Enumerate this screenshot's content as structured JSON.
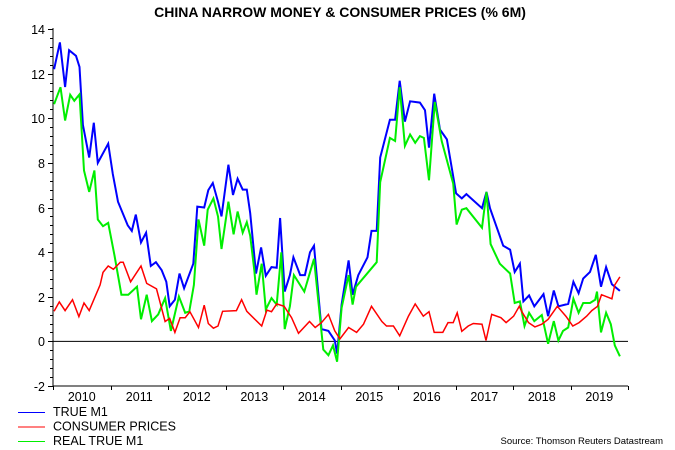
{
  "chart_data": {
    "type": "line",
    "title": "CHINA NARROW MONEY & CONSUMER PRICES (% 6M)",
    "xlabel": "",
    "ylabel": "",
    "xlim": [
      2010,
      2020
    ],
    "ylim": [
      -2,
      14
    ],
    "y_ticks": [
      "-2",
      "0",
      "2",
      "4",
      "6",
      "8",
      "10",
      "12",
      "14"
    ],
    "x_tick_labels": [
      "2010",
      "2011",
      "2012",
      "2013",
      "2014",
      "2015",
      "2016",
      "2017",
      "2018",
      "2019"
    ],
    "grid": false,
    "zero_line": true,
    "legend_placement": "bottom-left",
    "source": "Source: Thomson Reuters Datastream",
    "series": [
      {
        "name": "TRUE M1",
        "color": "#0000ff",
        "points": [
          [
            2010.02,
            12.2
          ],
          [
            2010.12,
            13.4
          ],
          [
            2010.21,
            11.4
          ],
          [
            2010.28,
            13.05
          ],
          [
            2010.4,
            12.8
          ],
          [
            2010.46,
            12.3
          ],
          [
            2010.52,
            9.7
          ],
          [
            2010.63,
            8.24
          ],
          [
            2010.71,
            9.8
          ],
          [
            2010.78,
            8.0
          ],
          [
            2010.96,
            8.86
          ],
          [
            2011.04,
            7.5
          ],
          [
            2011.13,
            6.26
          ],
          [
            2011.3,
            5.2
          ],
          [
            2011.37,
            4.95
          ],
          [
            2011.44,
            5.68
          ],
          [
            2011.53,
            4.43
          ],
          [
            2011.62,
            4.87
          ],
          [
            2011.7,
            3.38
          ],
          [
            2011.79,
            3.55
          ],
          [
            2011.89,
            3.19
          ],
          [
            2011.97,
            2.67
          ],
          [
            2012.03,
            1.57
          ],
          [
            2012.12,
            1.87
          ],
          [
            2012.2,
            3.04
          ],
          [
            2012.28,
            2.38
          ],
          [
            2012.44,
            3.48
          ],
          [
            2012.51,
            6.04
          ],
          [
            2012.63,
            6.0
          ],
          [
            2012.7,
            6.78
          ],
          [
            2012.78,
            7.1
          ],
          [
            2012.87,
            6.26
          ],
          [
            2012.93,
            5.6
          ],
          [
            2013.05,
            7.92
          ],
          [
            2013.13,
            6.56
          ],
          [
            2013.21,
            7.29
          ],
          [
            2013.3,
            6.8
          ],
          [
            2013.37,
            6.8
          ],
          [
            2013.43,
            5.75
          ],
          [
            2013.53,
            3.04
          ],
          [
            2013.62,
            4.21
          ],
          [
            2013.7,
            2.94
          ],
          [
            2013.8,
            3.33
          ],
          [
            2013.89,
            3.3
          ],
          [
            2013.95,
            5.53
          ],
          [
            2014.03,
            2.23
          ],
          [
            2014.12,
            2.97
          ],
          [
            2014.18,
            3.77
          ],
          [
            2014.3,
            2.97
          ],
          [
            2014.38,
            2.97
          ],
          [
            2014.47,
            3.99
          ],
          [
            2014.54,
            4.29
          ],
          [
            2014.67,
            0.55
          ],
          [
            2014.79,
            0.47
          ],
          [
            2014.9,
            0.04
          ],
          [
            2014.94,
            -0.55
          ],
          [
            2015.02,
            1.65
          ],
          [
            2015.14,
            3.63
          ],
          [
            2015.21,
            2.09
          ],
          [
            2015.31,
            2.97
          ],
          [
            2015.47,
            3.77
          ],
          [
            2015.54,
            4.95
          ],
          [
            2015.63,
            4.95
          ],
          [
            2015.69,
            8.24
          ],
          [
            2015.86,
            9.93
          ],
          [
            2015.95,
            9.93
          ],
          [
            2016.03,
            11.68
          ],
          [
            2016.12,
            9.85
          ],
          [
            2016.21,
            10.76
          ],
          [
            2016.38,
            10.7
          ],
          [
            2016.47,
            10.36
          ],
          [
            2016.54,
            8.68
          ],
          [
            2016.63,
            11.1
          ],
          [
            2016.73,
            9.49
          ],
          [
            2016.85,
            9.05
          ],
          [
            2017.01,
            6.63
          ],
          [
            2017.11,
            6.41
          ],
          [
            2017.19,
            6.6
          ],
          [
            2017.46,
            5.97
          ],
          [
            2017.54,
            6.7
          ],
          [
            2017.6,
            5.97
          ],
          [
            2017.72,
            5.09
          ],
          [
            2017.83,
            4.29
          ],
          [
            2017.95,
            4.11
          ],
          [
            2018.03,
            3.11
          ],
          [
            2018.12,
            3.48
          ],
          [
            2018.18,
            1.79
          ],
          [
            2018.28,
            2.06
          ],
          [
            2018.37,
            1.57
          ],
          [
            2018.53,
            2.12
          ],
          [
            2018.61,
            1.13
          ],
          [
            2018.71,
            2.28
          ],
          [
            2018.79,
            1.57
          ],
          [
            2018.96,
            1.68
          ],
          [
            2019.05,
            2.67
          ],
          [
            2019.14,
            2.16
          ],
          [
            2019.22,
            2.82
          ],
          [
            2019.34,
            3.11
          ],
          [
            2019.44,
            3.88
          ],
          [
            2019.53,
            2.45
          ],
          [
            2019.62,
            3.33
          ],
          [
            2019.72,
            2.56
          ],
          [
            2019.86,
            2.26
          ]
        ]
      },
      {
        "name": "CONSUMER PRICES",
        "color": "#ff0000",
        "points": [
          [
            2010.02,
            1.35
          ],
          [
            2010.11,
            1.77
          ],
          [
            2010.21,
            1.38
          ],
          [
            2010.34,
            1.87
          ],
          [
            2010.45,
            1.11
          ],
          [
            2010.54,
            1.72
          ],
          [
            2010.63,
            1.38
          ],
          [
            2010.82,
            2.53
          ],
          [
            2010.87,
            3.09
          ],
          [
            2010.96,
            3.38
          ],
          [
            2011.05,
            3.23
          ],
          [
            2011.17,
            3.55
          ],
          [
            2011.22,
            3.55
          ],
          [
            2011.35,
            2.67
          ],
          [
            2011.53,
            3.38
          ],
          [
            2011.63,
            2.6
          ],
          [
            2011.8,
            2.35
          ],
          [
            2011.95,
            0.89
          ],
          [
            2012.03,
            1.03
          ],
          [
            2012.12,
            0.4
          ],
          [
            2012.21,
            1.06
          ],
          [
            2012.3,
            1.06
          ],
          [
            2012.38,
            1.33
          ],
          [
            2012.53,
            0.62
          ],
          [
            2012.63,
            1.62
          ],
          [
            2012.7,
            0.8
          ],
          [
            2012.79,
            0.59
          ],
          [
            2012.87,
            0.69
          ],
          [
            2012.95,
            1.35
          ],
          [
            2013.19,
            1.38
          ],
          [
            2013.28,
            1.87
          ],
          [
            2013.37,
            1.35
          ],
          [
            2013.63,
            0.69
          ],
          [
            2013.72,
            1.4
          ],
          [
            2013.8,
            1.33
          ],
          [
            2013.89,
            1.68
          ],
          [
            2014.02,
            1.57
          ],
          [
            2014.15,
            1.06
          ],
          [
            2014.27,
            0.36
          ],
          [
            2014.46,
            0.89
          ],
          [
            2014.56,
            0.62
          ],
          [
            2014.67,
            0.84
          ],
          [
            2014.79,
            1.21
          ],
          [
            2014.9,
            0.47
          ],
          [
            2014.99,
            0.11
          ],
          [
            2015.14,
            0.62
          ],
          [
            2015.28,
            0.4
          ],
          [
            2015.4,
            0.77
          ],
          [
            2015.54,
            1.57
          ],
          [
            2015.72,
            0.89
          ],
          [
            2015.8,
            0.69
          ],
          [
            2015.92,
            0.69
          ],
          [
            2016.03,
            0.25
          ],
          [
            2016.18,
            1.13
          ],
          [
            2016.3,
            1.68
          ],
          [
            2016.44,
            1.13
          ],
          [
            2016.54,
            1.33
          ],
          [
            2016.63,
            0.4
          ],
          [
            2016.78,
            0.4
          ],
          [
            2016.87,
            0.84
          ],
          [
            2016.96,
            0.84
          ],
          [
            2017.03,
            1.28
          ],
          [
            2017.11,
            0.45
          ],
          [
            2017.22,
            0.69
          ],
          [
            2017.31,
            0.8
          ],
          [
            2017.46,
            0.77
          ],
          [
            2017.53,
            0.04
          ],
          [
            2017.63,
            1.21
          ],
          [
            2017.79,
            1.06
          ],
          [
            2017.88,
            0.84
          ],
          [
            2018.01,
            1.13
          ],
          [
            2018.11,
            1.57
          ],
          [
            2018.15,
            1.35
          ],
          [
            2018.27,
            0.84
          ],
          [
            2018.38,
            0.65
          ],
          [
            2018.5,
            0.77
          ],
          [
            2018.61,
            0.99
          ],
          [
            2018.77,
            1.57
          ],
          [
            2018.92,
            1.13
          ],
          [
            2019.04,
            0.69
          ],
          [
            2019.15,
            0.84
          ],
          [
            2019.28,
            1.13
          ],
          [
            2019.37,
            1.38
          ],
          [
            2019.47,
            1.57
          ],
          [
            2019.54,
            2.09
          ],
          [
            2019.66,
            1.97
          ],
          [
            2019.72,
            1.91
          ],
          [
            2019.77,
            2.53
          ],
          [
            2019.86,
            2.89
          ]
        ]
      },
      {
        "name": "REAL TRUE M1",
        "color": "#00ee00",
        "points": [
          [
            2010.02,
            10.63
          ],
          [
            2010.13,
            11.39
          ],
          [
            2010.21,
            9.9
          ],
          [
            2010.3,
            11.05
          ],
          [
            2010.37,
            10.78
          ],
          [
            2010.46,
            11.07
          ],
          [
            2010.54,
            7.66
          ],
          [
            2010.63,
            6.7
          ],
          [
            2010.72,
            7.66
          ],
          [
            2010.78,
            5.46
          ],
          [
            2010.87,
            5.16
          ],
          [
            2010.96,
            5.31
          ],
          [
            2011.07,
            3.85
          ],
          [
            2011.19,
            2.09
          ],
          [
            2011.31,
            2.09
          ],
          [
            2011.46,
            2.45
          ],
          [
            2011.53,
            0.99
          ],
          [
            2011.63,
            2.09
          ],
          [
            2011.72,
            0.91
          ],
          [
            2011.83,
            1.21
          ],
          [
            2011.95,
            1.94
          ],
          [
            2012.05,
            0.47
          ],
          [
            2012.19,
            2.01
          ],
          [
            2012.3,
            1.28
          ],
          [
            2012.37,
            1.35
          ],
          [
            2012.45,
            2.53
          ],
          [
            2012.53,
            5.46
          ],
          [
            2012.63,
            4.29
          ],
          [
            2012.69,
            5.9
          ],
          [
            2012.79,
            6.41
          ],
          [
            2012.87,
            5.6
          ],
          [
            2012.93,
            4.14
          ],
          [
            2013.05,
            6.26
          ],
          [
            2013.14,
            4.8
          ],
          [
            2013.21,
            5.82
          ],
          [
            2013.3,
            4.87
          ],
          [
            2013.37,
            5.34
          ],
          [
            2013.43,
            4.73
          ],
          [
            2013.5,
            3.19
          ],
          [
            2013.54,
            2.09
          ],
          [
            2013.63,
            3.48
          ],
          [
            2013.7,
            1.43
          ],
          [
            2013.8,
            1.94
          ],
          [
            2013.89,
            1.65
          ],
          [
            2013.97,
            3.99
          ],
          [
            2014.03,
            0.55
          ],
          [
            2014.12,
            1.57
          ],
          [
            2014.19,
            2.97
          ],
          [
            2014.37,
            2.23
          ],
          [
            2014.54,
            3.7
          ],
          [
            2014.7,
            -0.37
          ],
          [
            2014.79,
            -0.62
          ],
          [
            2014.87,
            -0.18
          ],
          [
            2014.94,
            -0.91
          ],
          [
            2015.02,
            1.5
          ],
          [
            2015.14,
            2.97
          ],
          [
            2015.21,
            1.65
          ],
          [
            2015.27,
            2.45
          ],
          [
            2015.63,
            3.55
          ],
          [
            2015.69,
            7.14
          ],
          [
            2015.86,
            9.12
          ],
          [
            2015.95,
            8.98
          ],
          [
            2016.03,
            11.39
          ],
          [
            2016.12,
            8.76
          ],
          [
            2016.21,
            9.27
          ],
          [
            2016.3,
            8.9
          ],
          [
            2016.38,
            9.2
          ],
          [
            2016.45,
            9.12
          ],
          [
            2016.54,
            7.22
          ],
          [
            2016.64,
            10.73
          ],
          [
            2016.76,
            8.98
          ],
          [
            2016.96,
            7.07
          ],
          [
            2017.02,
            5.24
          ],
          [
            2017.11,
            5.9
          ],
          [
            2017.19,
            5.97
          ],
          [
            2017.46,
            5.09
          ],
          [
            2017.54,
            6.7
          ],
          [
            2017.61,
            4.36
          ],
          [
            2017.77,
            3.48
          ],
          [
            2017.95,
            3.04
          ],
          [
            2018.03,
            1.72
          ],
          [
            2018.12,
            1.79
          ],
          [
            2018.2,
            0.69
          ],
          [
            2018.28,
            1.28
          ],
          [
            2018.37,
            0.91
          ],
          [
            2018.5,
            1.18
          ],
          [
            2018.61,
            -0.11
          ],
          [
            2018.71,
            0.91
          ],
          [
            2018.79,
            0.04
          ],
          [
            2018.87,
            0.47
          ],
          [
            2018.96,
            0.62
          ],
          [
            2019.05,
            1.91
          ],
          [
            2019.14,
            1.28
          ],
          [
            2019.22,
            1.72
          ],
          [
            2019.34,
            1.72
          ],
          [
            2019.43,
            1.87
          ],
          [
            2019.46,
            2.23
          ],
          [
            2019.53,
            0.4
          ],
          [
            2019.62,
            1.28
          ],
          [
            2019.7,
            0.77
          ],
          [
            2019.77,
            -0.18
          ],
          [
            2019.86,
            -0.67
          ]
        ]
      }
    ]
  }
}
